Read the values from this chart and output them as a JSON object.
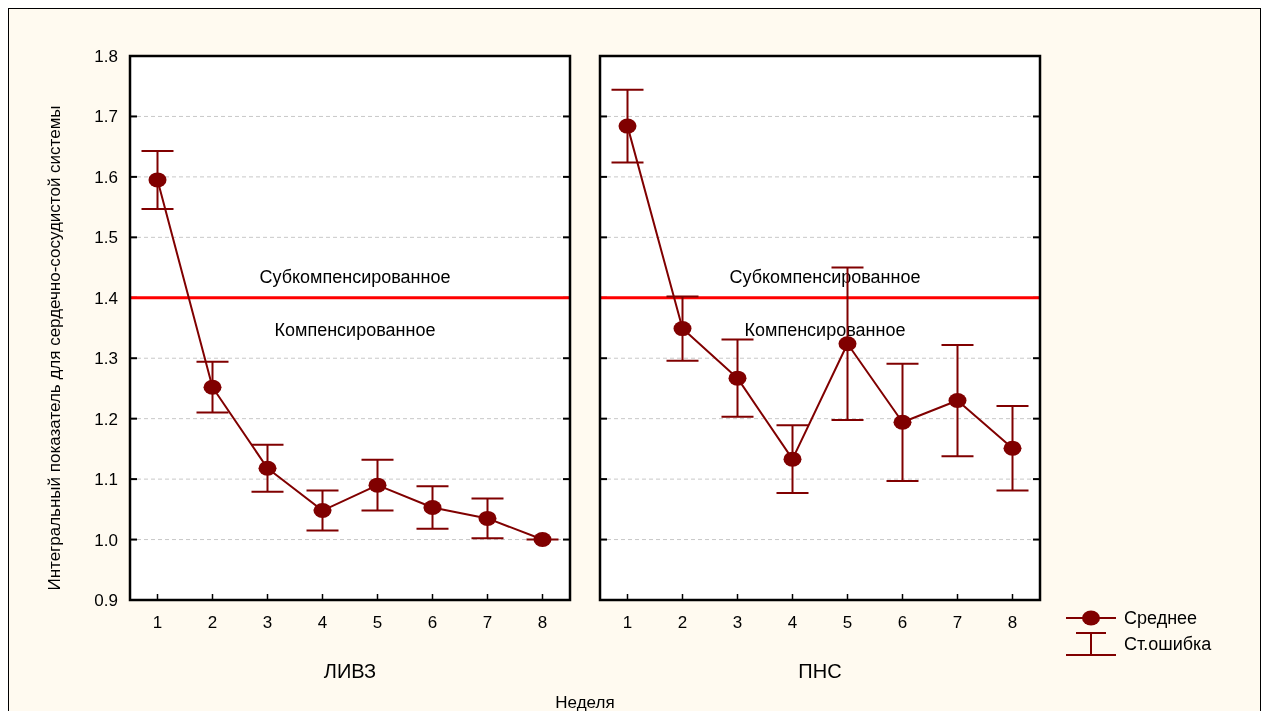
{
  "chart_data": [
    {
      "type": "line",
      "title": "ЛИВЗ",
      "xlabel": "Неделя",
      "ylabel": "Интегральный показатель для сердечно-сосудистой системы",
      "categories": [
        "1",
        "2",
        "3",
        "4",
        "5",
        "6",
        "7",
        "8"
      ],
      "series": [
        {
          "color": "#800000",
          "values": [
            1.595,
            1.252,
            1.118,
            1.048,
            1.09,
            1.053,
            1.035,
            1.0
          ],
          "errors": [
            0.048,
            0.042,
            0.039,
            0.033,
            0.042,
            0.035,
            0.033,
            0
          ]
        }
      ],
      "ylim": [
        0.9,
        1.8
      ],
      "yticks": [
        {
          "value": 0.9,
          "label": "0.9"
        },
        {
          "value": 1,
          "label": "1.0"
        },
        {
          "value": 1.1,
          "label": "1.1"
        },
        {
          "value": 1.2,
          "label": "1.2"
        },
        {
          "value": 1.3,
          "label": "1.3"
        },
        {
          "value": 1.4,
          "label": "1.4"
        },
        {
          "value": 1.5,
          "label": "1.5"
        },
        {
          "value": 1.6,
          "label": "1.6"
        },
        {
          "value": 1.7,
          "label": "1.7"
        },
        {
          "value": 1.8,
          "label": "1.8"
        }
      ],
      "grid": "y",
      "marker": "circle",
      "line_style": "solid",
      "ref_lines": [
        {
          "axis": "y",
          "value": 1.4,
          "color": "#ff0000"
        }
      ],
      "annotations": [
        "Субкомпенсированное",
        "Компенсированное"
      ]
    },
    {
      "type": "line",
      "title": "ПНС",
      "categories": [
        "1",
        "2",
        "3",
        "4",
        "5",
        "6",
        "7",
        "8"
      ],
      "series": [
        {
          "name": "Среднее",
          "color": "#800000",
          "values": [
            1.684,
            1.349,
            1.267,
            1.133,
            1.324,
            1.194,
            1.23,
            1.151
          ],
          "errors": [
            0.06,
            0.053,
            0.064,
            0.056,
            0.126,
            0.097,
            0.092,
            0.07
          ]
        }
      ],
      "ylim": [
        0.9,
        1.8
      ],
      "yticks": [
        0.9,
        1,
        1.1,
        1.2,
        1.3,
        1.4,
        1.5,
        1.6,
        1.7,
        1.8
      ],
      "grid": "y",
      "marker": "circle",
      "line_style": "solid",
      "tick_labels": "x",
      "legend": "bottom right",
      "ref_lines": [
        {
          "axis": "y",
          "value": 1.4,
          "color": "#ff0000"
        }
      ],
      "annotations": [
        "Субкомпенсированное",
        "Компенсированное",
        "Ст.ошибка"
      ]
    }
  ]
}
